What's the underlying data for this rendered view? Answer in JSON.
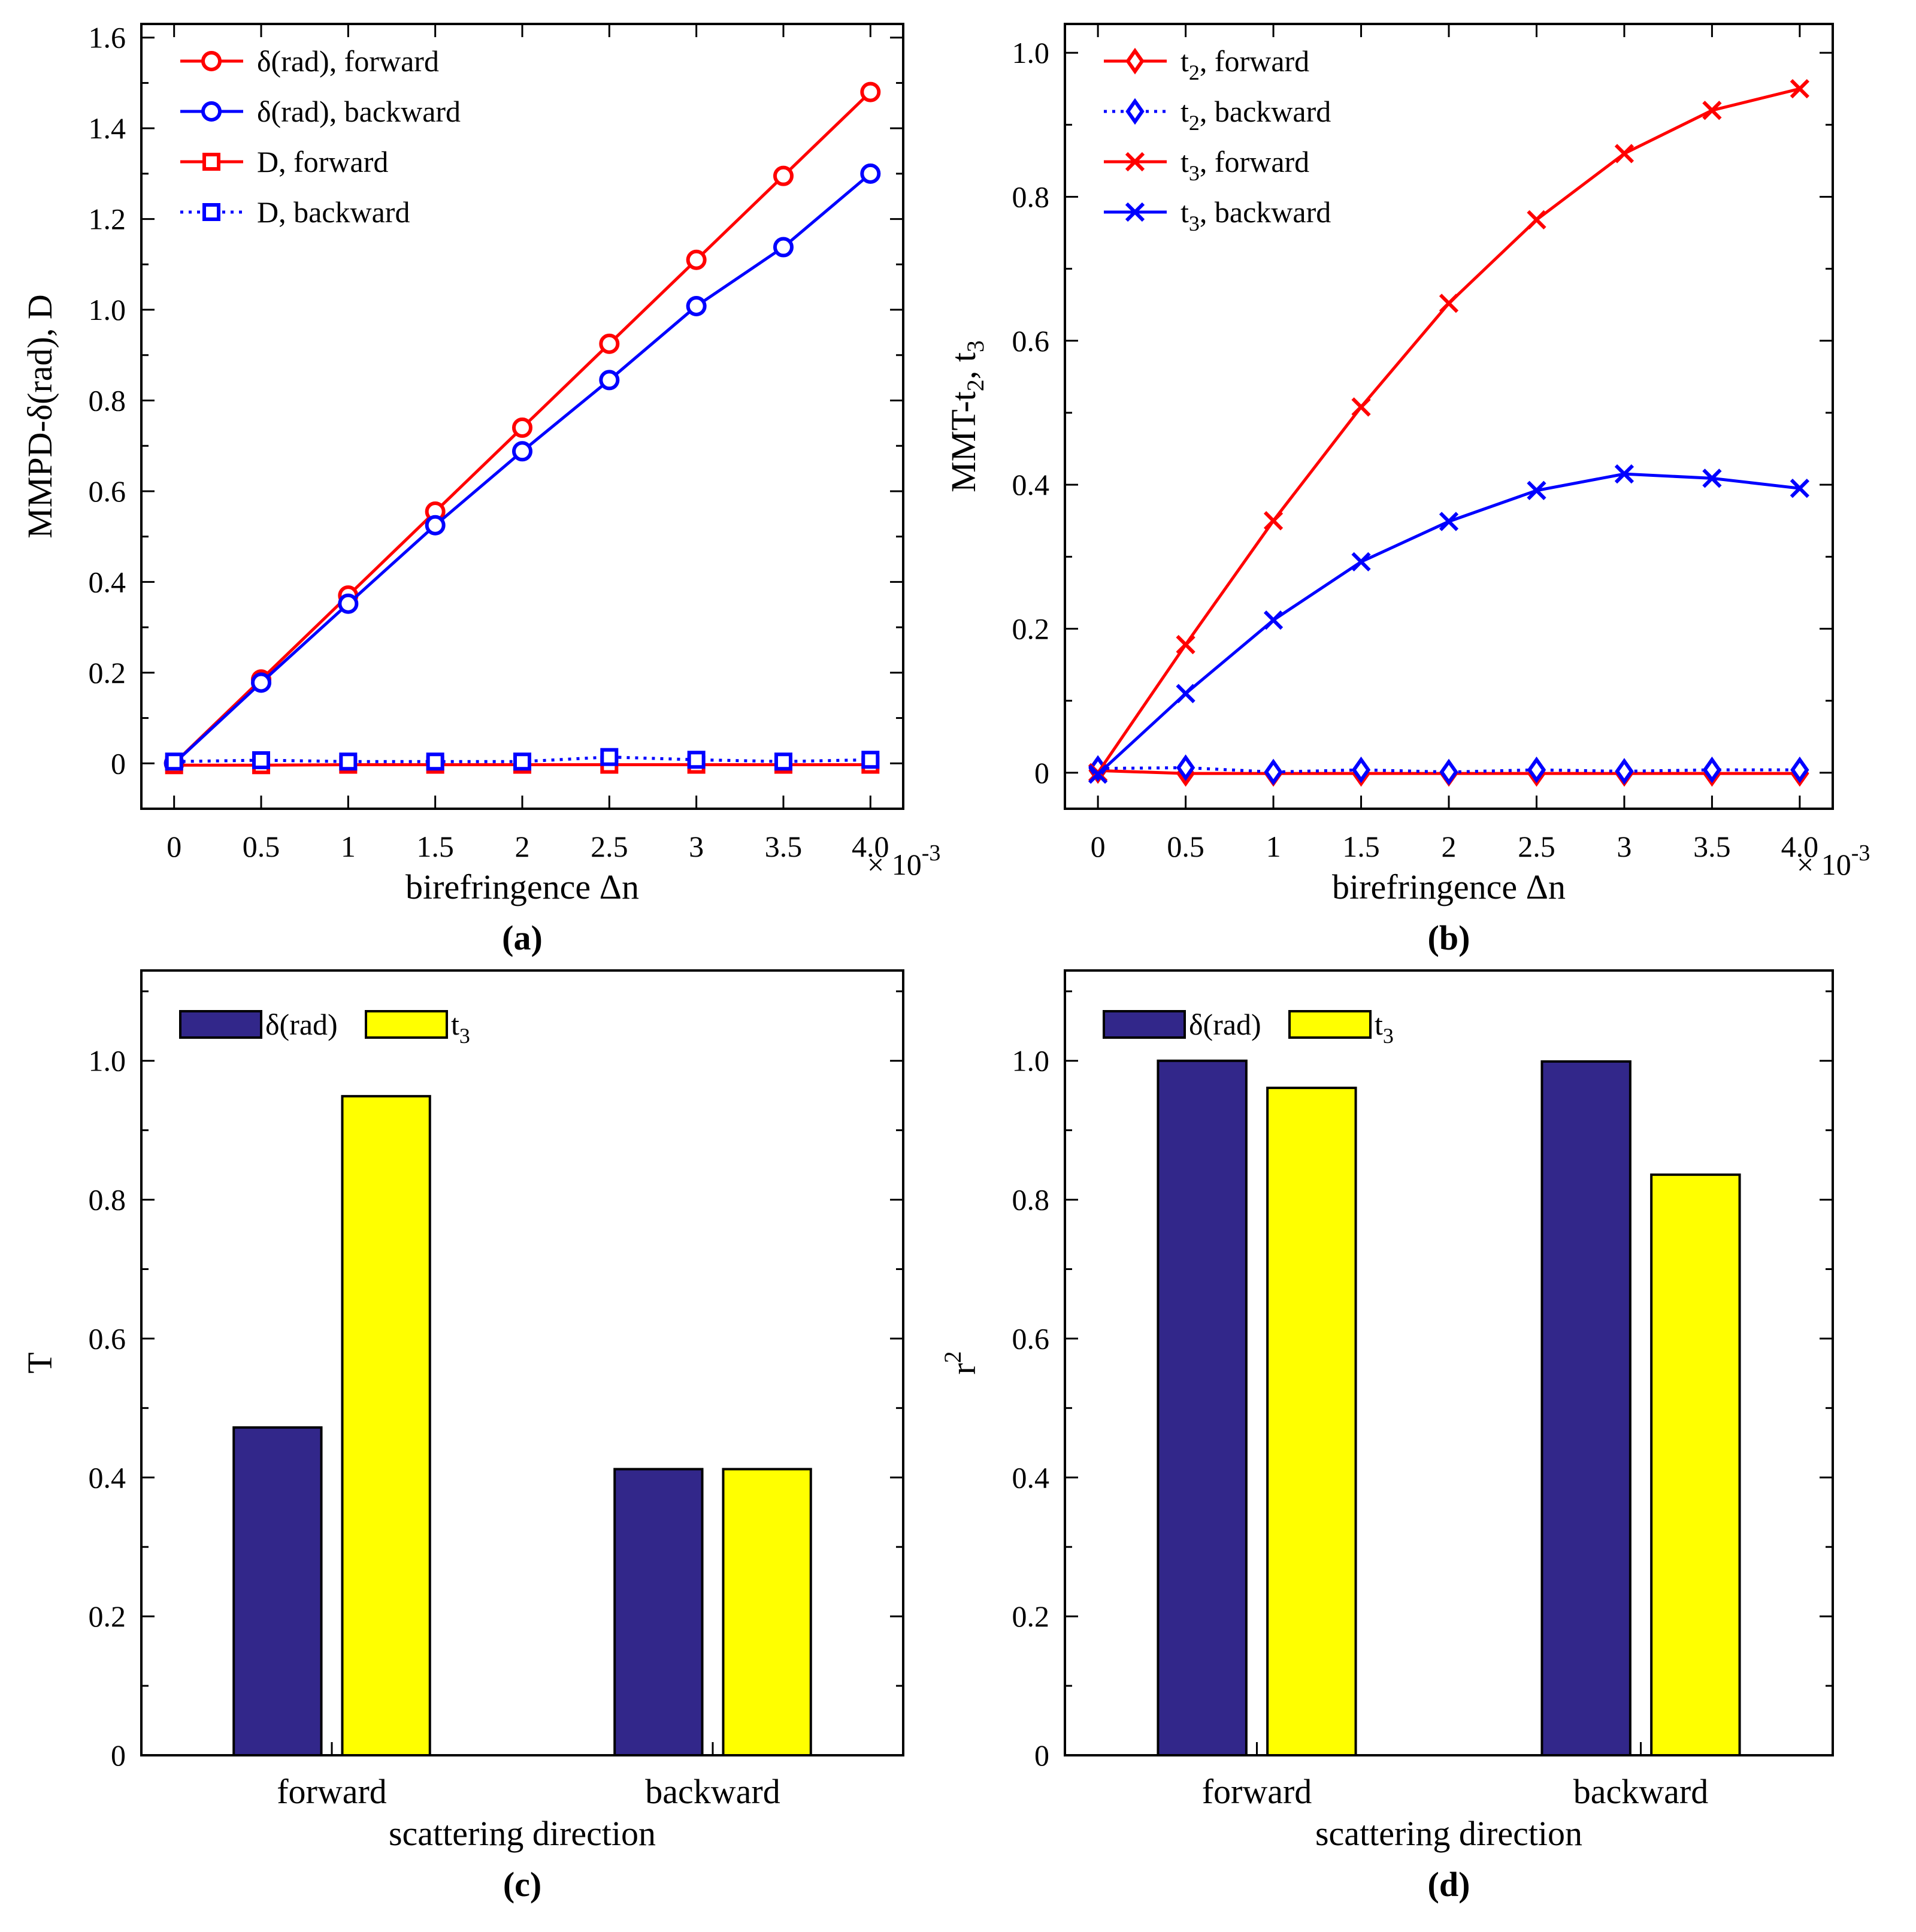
{
  "chart_data": [
    {
      "type": "line",
      "panel_label": "(a)",
      "xlabel": "birefringence   Δn",
      "x_multiplier": "× 10",
      "x_multiplier_exp": "-3",
      "ylabel": "MMPD-δ(rad), D",
      "x": [
        0,
        0.5,
        1,
        1.5,
        2,
        2.5,
        3,
        3.5,
        4.0
      ],
      "xtick_labels": [
        "0",
        "0.5",
        "1",
        "1.5",
        "2",
        "2.5",
        "3",
        "3.5",
        "4.0"
      ],
      "ylim": [
        -0.1,
        1.63
      ],
      "yticks": [
        0,
        0.2,
        0.4,
        0.6,
        0.8,
        1.0,
        1.2,
        1.4,
        1.6
      ],
      "ytick_labels": [
        "0",
        "0.2",
        "0.4",
        "0.6",
        "0.8",
        "1.0",
        "1.2",
        "1.4",
        "1.6"
      ],
      "series": [
        {
          "name": "δ(rad), forward",
          "name_sub": "",
          "name_rest": "",
          "color": "#ff0000",
          "marker": "circle",
          "dash": "solid",
          "values": [
            0.0,
            0.185,
            0.37,
            0.555,
            0.74,
            0.925,
            1.11,
            1.295,
            1.48
          ]
        },
        {
          "name": "δ(rad), backward",
          "name_sub": "",
          "name_rest": "",
          "color": "#0000ff",
          "marker": "circle",
          "dash": "solid",
          "values": [
            0.0,
            0.178,
            0.352,
            0.525,
            0.688,
            0.845,
            1.008,
            1.138,
            1.3
          ]
        },
        {
          "name": "D, forward",
          "name_sub": "",
          "name_rest": "",
          "color": "#ff0000",
          "marker": "square",
          "dash": "solid",
          "values": [
            -0.004,
            -0.004,
            -0.003,
            -0.003,
            -0.003,
            -0.003,
            -0.003,
            -0.003,
            -0.003
          ]
        },
        {
          "name": "D, backward",
          "name_sub": "",
          "name_rest": "",
          "color": "#0000ff",
          "marker": "square",
          "dash": "dotted",
          "values": [
            0.004,
            0.007,
            0.004,
            0.004,
            0.004,
            0.014,
            0.008,
            0.004,
            0.008
          ]
        }
      ]
    },
    {
      "type": "line",
      "panel_label": "(b)",
      "xlabel": "birefringence   Δn",
      "x_multiplier": "× 10",
      "x_multiplier_exp": "-3",
      "ylabel": "MMT-t",
      "ylabel_sub1": "2",
      "ylabel_mid": ", t",
      "ylabel_sub2": "3",
      "x": [
        0,
        0.5,
        1,
        1.5,
        2,
        2.5,
        3,
        3.5,
        4.0
      ],
      "xtick_labels": [
        "0",
        "0.5",
        "1",
        "1.5",
        "2",
        "2.5",
        "3",
        "3.5",
        "4.0"
      ],
      "ylim": [
        -0.05,
        1.04
      ],
      "yticks": [
        0,
        0.2,
        0.4,
        0.6,
        0.8,
        1.0
      ],
      "ytick_labels": [
        "0",
        "0.2",
        "0.4",
        "0.6",
        "0.8",
        "1.0"
      ],
      "series": [
        {
          "name": "t",
          "name_sub": "2",
          "name_rest": ", forward",
          "color": "#ff0000",
          "marker": "diamond",
          "dash": "solid",
          "values": [
            0.003,
            -0.001,
            -0.001,
            -0.001,
            -0.001,
            -0.001,
            -0.001,
            -0.001,
            -0.001
          ]
        },
        {
          "name": "t",
          "name_sub": "2",
          "name_rest": ", backward",
          "color": "#0000ff",
          "marker": "diamond",
          "dash": "dotted",
          "values": [
            0.006,
            0.007,
            0.001,
            0.004,
            0.001,
            0.004,
            0.002,
            0.004,
            0.004
          ]
        },
        {
          "name": "t",
          "name_sub": "3",
          "name_rest": ", forward",
          "color": "#ff0000",
          "marker": "x",
          "dash": "solid",
          "values": [
            0.0,
            0.178,
            0.35,
            0.508,
            0.652,
            0.768,
            0.86,
            0.92,
            0.95
          ]
        },
        {
          "name": "t",
          "name_sub": "3",
          "name_rest": ", backward",
          "color": "#0000ff",
          "marker": "x",
          "dash": "solid",
          "values": [
            -0.002,
            0.11,
            0.212,
            0.293,
            0.349,
            0.392,
            0.415,
            0.409,
            0.395
          ]
        }
      ]
    },
    {
      "type": "bar",
      "panel_label": "(c)",
      "xlabel": "scattering direction",
      "ylabel": "T",
      "ylabel_sup": "",
      "categories": [
        "forward",
        "backward"
      ],
      "ylim": [
        0,
        1.13
      ],
      "yticks": [
        0,
        0.2,
        0.4,
        0.6,
        0.8,
        1.0
      ],
      "ytick_labels": [
        "0",
        "0.2",
        "0.4",
        "0.6",
        "0.8",
        "1.0"
      ],
      "series": [
        {
          "name": "δ(rad)",
          "name_sub": "",
          "color": "#32278a",
          "values": [
            0.472,
            0.412
          ]
        },
        {
          "name": "t",
          "name_sub": "3",
          "color": "#ffff00",
          "values": [
            0.949,
            0.412
          ]
        }
      ]
    },
    {
      "type": "bar",
      "panel_label": "(d)",
      "xlabel": "scattering direction",
      "ylabel": "r",
      "ylabel_sup": "2",
      "categories": [
        "forward",
        "backward"
      ],
      "ylim": [
        0,
        1.13
      ],
      "yticks": [
        0,
        0.2,
        0.4,
        0.6,
        0.8,
        1.0
      ],
      "ytick_labels": [
        "0",
        "0.2",
        "0.4",
        "0.6",
        "0.8",
        "1.0"
      ],
      "series": [
        {
          "name": "δ(rad)",
          "name_sub": "",
          "color": "#32278a",
          "values": [
            1.0,
            0.999
          ]
        },
        {
          "name": "t",
          "name_sub": "3",
          "color": "#ffff00",
          "values": [
            0.961,
            0.836
          ]
        }
      ]
    }
  ]
}
